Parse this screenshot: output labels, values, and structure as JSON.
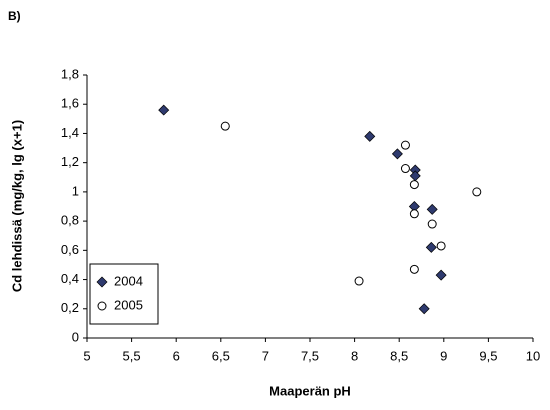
{
  "chart_data": {
    "type": "scatter",
    "panel_label": "B)",
    "xlabel": "Maaperän pH",
    "ylabel": "Cd lehdissä (mg/kg, lg (x+1)",
    "xlim": [
      5,
      10
    ],
    "xticks": [
      5,
      {
        "value": 5.5,
        "label": "5,5"
      },
      6,
      {
        "value": 6.5,
        "label": "6,5"
      },
      7,
      {
        "value": 7.5,
        "label": "7,5"
      },
      8,
      {
        "value": 8.5,
        "label": "8,5"
      },
      9,
      {
        "value": 9.5,
        "label": "9,5"
      },
      10
    ],
    "ylim": [
      0,
      1.8
    ],
    "yticks": [
      0,
      {
        "value": 0.2,
        "label": "0,2"
      },
      {
        "value": 0.4,
        "label": "0,4"
      },
      {
        "value": 0.6,
        "label": "0,6"
      },
      {
        "value": 0.8,
        "label": "0,8"
      },
      1,
      {
        "value": 1.2,
        "label": "1,2"
      },
      {
        "value": 1.4,
        "label": "1,4"
      },
      {
        "value": 1.6,
        "label": "1,6"
      },
      {
        "value": 1.8,
        "label": "1,8"
      }
    ],
    "grid": false,
    "legend": "lower left",
    "series": [
      {
        "name": "2004",
        "color": "#2e3a6e",
        "marker": "diamond",
        "x": [
          5.86,
          8.17,
          8.48,
          8.68,
          8.68,
          8.67,
          8.87,
          8.86,
          8.97,
          8.78
        ],
        "values": [
          1.56,
          1.38,
          1.26,
          1.15,
          1.11,
          0.9,
          0.88,
          0.62,
          0.43,
          0.2
        ]
      },
      {
        "name": "2005",
        "color": "#ffffff",
        "marker": "circle",
        "x": [
          6.55,
          8.57,
          8.57,
          8.67,
          9.37,
          8.87,
          8.67,
          8.97,
          8.67,
          8.05
        ],
        "values": [
          1.45,
          1.32,
          1.16,
          1.05,
          1.0,
          0.78,
          0.85,
          0.63,
          0.47,
          0.39
        ]
      }
    ]
  }
}
